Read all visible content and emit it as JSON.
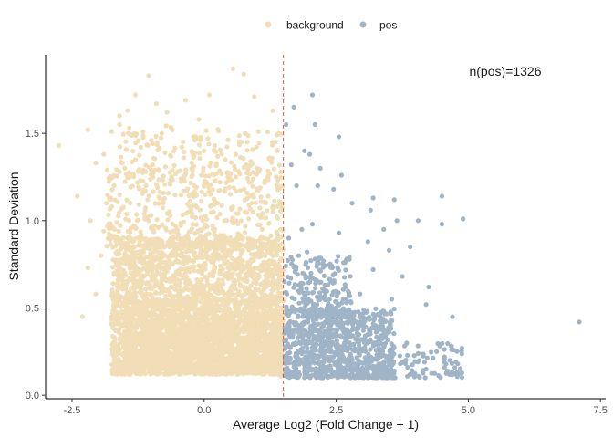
{
  "chart_data": {
    "type": "scatter",
    "title": "",
    "xlabel": "Average Log2 (Fold Change + 1)",
    "ylabel": "Standard Deviation",
    "xlim": [
      -3.0,
      7.6
    ],
    "ylim": [
      -0.02,
      1.95
    ],
    "x_ticks": [
      -2.5,
      0.0,
      2.5,
      5.0,
      7.5
    ],
    "x_tick_labels": [
      "-2.5",
      "0.0",
      "2.5",
      "5.0",
      "7.5"
    ],
    "y_ticks": [
      0.0,
      0.5,
      1.0,
      1.5
    ],
    "y_tick_labels": [
      "0.0",
      "0.5",
      "1.0",
      "1.5"
    ],
    "grid": false,
    "legend_position": "top",
    "threshold_x": 1.5,
    "threshold_color": "#d4603f",
    "annotation": "n(pos)=1326",
    "series": [
      {
        "name": "background",
        "color": "#f2deb6",
        "points": [
          [
            -2.75,
            1.43
          ],
          [
            -2.2,
            1.52
          ],
          [
            -2.4,
            1.14
          ],
          [
            -2.05,
            1.33
          ],
          [
            -1.9,
            1.38
          ],
          [
            -1.75,
            1.51
          ],
          [
            -1.6,
            1.55
          ],
          [
            -1.45,
            1.63
          ],
          [
            -1.3,
            1.72
          ],
          [
            -1.05,
            1.83
          ],
          [
            -0.9,
            1.67
          ],
          [
            -0.7,
            1.62
          ],
          [
            -0.35,
            1.69
          ],
          [
            -0.1,
            1.58
          ],
          [
            0.1,
            1.72
          ],
          [
            0.55,
            1.87
          ],
          [
            0.75,
            1.84
          ],
          [
            0.95,
            1.71
          ],
          [
            1.3,
            1.63
          ],
          [
            -1.6,
            1.6
          ],
          [
            -2.3,
            0.45
          ],
          [
            -2.05,
            0.58
          ],
          [
            -2.2,
            0.73
          ],
          [
            -1.95,
            0.8
          ],
          [
            -1.9,
            0.94
          ],
          [
            -2.15,
            1.0
          ],
          [
            -1.85,
            1.1
          ],
          [
            -1.7,
            1.2
          ],
          [
            -1.6,
            1.28
          ],
          [
            -1.5,
            1.3
          ],
          [
            -1.3,
            1.35
          ],
          [
            -1.2,
            1.42
          ],
          [
            -1.0,
            1.46
          ],
          [
            -0.8,
            1.5
          ],
          [
            -0.6,
            1.52
          ],
          [
            -0.4,
            1.45
          ],
          [
            -0.2,
            1.48
          ],
          [
            0.0,
            1.4
          ],
          [
            0.2,
            1.43
          ],
          [
            0.4,
            1.35
          ],
          [
            0.6,
            1.38
          ],
          [
            0.8,
            1.32
          ],
          [
            1.0,
            1.3
          ],
          [
            1.2,
            1.25
          ],
          [
            1.4,
            1.2
          ],
          [
            -1.4,
            1.1
          ],
          [
            -1.1,
            1.2
          ],
          [
            -0.5,
            1.28
          ],
          [
            0.3,
            1.22
          ],
          [
            0.9,
            1.1
          ],
          [
            1.3,
            1.05
          ],
          [
            1.1,
            0.95
          ],
          [
            0.7,
            1.0
          ],
          [
            -0.3,
            1.05
          ],
          [
            -1.7,
            0.95
          ],
          [
            -1.45,
            0.28
          ],
          [
            -1.3,
            0.22
          ],
          [
            -1.1,
            0.2
          ],
          [
            -0.9,
            0.19
          ],
          [
            -0.7,
            0.18
          ],
          [
            -0.5,
            0.17
          ],
          [
            -0.3,
            0.18
          ],
          [
            -0.1,
            0.16
          ],
          [
            0.1,
            0.15
          ],
          [
            0.3,
            0.14
          ],
          [
            0.5,
            0.15
          ],
          [
            0.7,
            0.14
          ],
          [
            0.9,
            0.13
          ],
          [
            1.1,
            0.12
          ],
          [
            1.3,
            0.12
          ],
          [
            1.45,
            0.11
          ],
          [
            -1.6,
            0.38
          ],
          [
            -1.65,
            0.55
          ],
          [
            -1.55,
            0.66
          ],
          [
            -1.5,
            0.85
          ],
          [
            1.45,
            0.95
          ],
          [
            1.4,
            0.75
          ],
          [
            1.45,
            0.55
          ],
          [
            -1.75,
            0.45
          ],
          [
            0.2,
            0.95
          ]
        ],
        "density": [
          {
            "xlim": [
              -1.75,
              1.5
            ],
            "ylim": [
              0.12,
              0.9
            ],
            "n": 2800
          },
          {
            "xlim": [
              -1.5,
              1.5
            ],
            "ylim": [
              0.15,
              0.55
            ],
            "n": 1500
          },
          {
            "xlim": [
              -1.85,
              1.5
            ],
            "ylim": [
              0.85,
              1.3
            ],
            "n": 450
          },
          {
            "xlim": [
              -1.6,
              1.45
            ],
            "ylim": [
              1.25,
              1.55
            ],
            "n": 150
          }
        ]
      },
      {
        "name": "pos",
        "color": "#9fb4c7",
        "points": [
          [
            1.55,
            1.55
          ],
          [
            1.7,
            1.65
          ],
          [
            2.05,
            1.72
          ],
          [
            2.1,
            1.55
          ],
          [
            2.55,
            1.48
          ],
          [
            1.9,
            1.4
          ],
          [
            2.0,
            1.38
          ],
          [
            1.65,
            1.32
          ],
          [
            2.2,
            1.3
          ],
          [
            2.6,
            1.26
          ],
          [
            1.75,
            1.2
          ],
          [
            2.15,
            1.2
          ],
          [
            2.45,
            1.18
          ],
          [
            3.2,
            1.13
          ],
          [
            3.6,
            1.12
          ],
          [
            2.8,
            1.1
          ],
          [
            3.15,
            1.06
          ],
          [
            4.5,
            1.14
          ],
          [
            4.05,
            1.0
          ],
          [
            4.5,
            0.98
          ],
          [
            2.05,
            0.98
          ],
          [
            1.85,
            0.95
          ],
          [
            2.55,
            0.93
          ],
          [
            3.1,
            0.88
          ],
          [
            3.5,
            0.83
          ],
          [
            1.6,
            0.9
          ],
          [
            1.95,
            0.82
          ],
          [
            2.7,
            0.78
          ],
          [
            3.9,
            0.85
          ],
          [
            3.2,
            0.72
          ],
          [
            2.95,
            0.58
          ],
          [
            3.55,
            0.55
          ],
          [
            4.2,
            0.52
          ],
          [
            4.7,
            0.45
          ],
          [
            7.1,
            0.42
          ],
          [
            4.9,
            1.01
          ],
          [
            3.4,
            0.95
          ],
          [
            3.65,
            1.0
          ],
          [
            4.25,
            0.62
          ],
          [
            3.75,
            0.68
          ],
          [
            4.4,
            0.25
          ],
          [
            4.55,
            0.22
          ],
          [
            4.65,
            0.2
          ],
          [
            4.8,
            0.18
          ],
          [
            4.55,
            0.16
          ],
          [
            4.2,
            0.15
          ],
          [
            3.9,
            0.12
          ],
          [
            3.6,
            0.14
          ],
          [
            3.3,
            0.12
          ],
          [
            2.9,
            0.12
          ],
          [
            2.6,
            0.11
          ],
          [
            2.3,
            0.12
          ],
          [
            2.0,
            0.11
          ],
          [
            1.75,
            0.11
          ],
          [
            1.6,
            0.12
          ]
        ],
        "density": [
          {
            "xlim": [
              1.52,
              3.6
            ],
            "ylim": [
              0.1,
              0.5
            ],
            "n": 900
          },
          {
            "xlim": [
              1.52,
              2.8
            ],
            "ylim": [
              0.45,
              0.8
            ],
            "n": 220
          },
          {
            "xlim": [
              3.2,
              4.9
            ],
            "ylim": [
              0.1,
              0.3
            ],
            "n": 100
          }
        ]
      }
    ]
  }
}
